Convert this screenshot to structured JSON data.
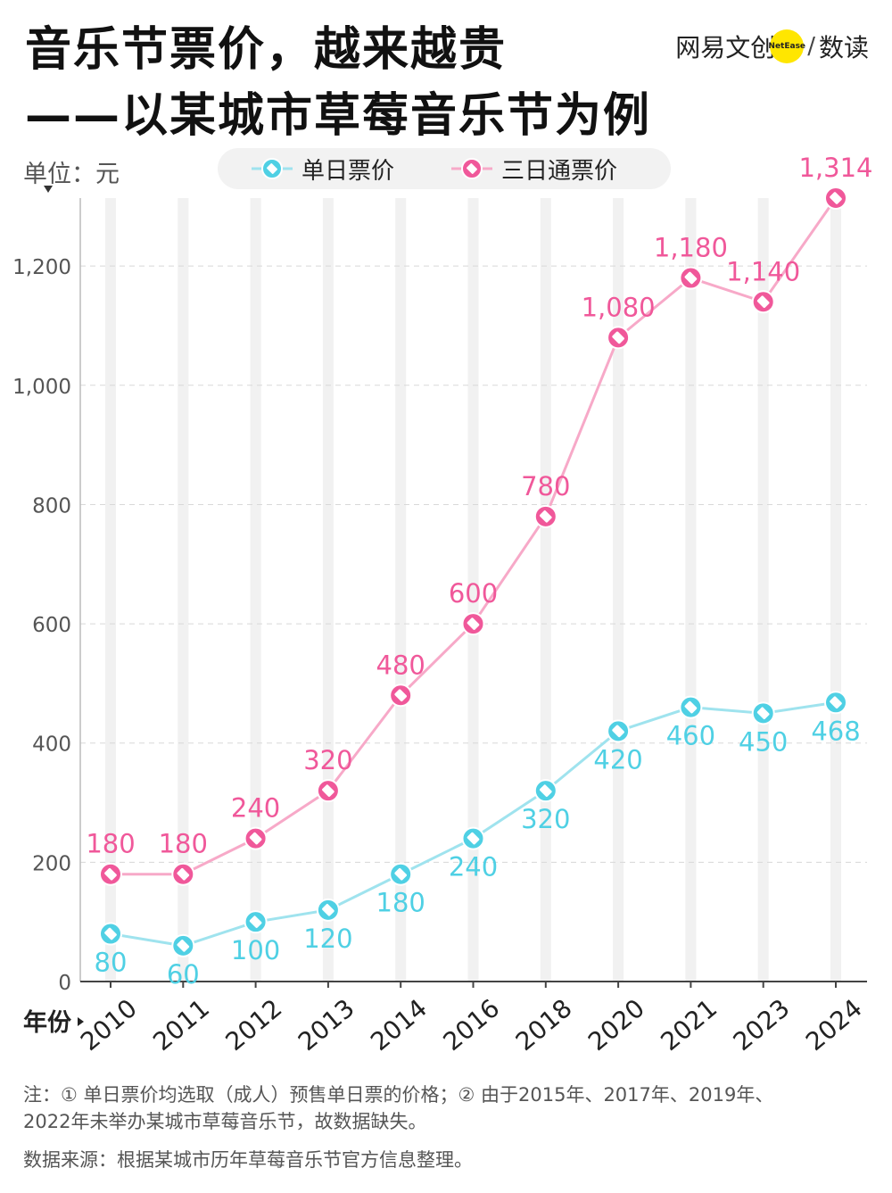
{
  "header": {
    "title_line1": "音乐节票价，越来越贵",
    "title_line2": "——以某城市草莓音乐节为例",
    "brand_left": "网易文创",
    "brand_badge": "NetEase",
    "brand_slash": "/",
    "brand_right": "数读"
  },
  "unit_label": "单位：元",
  "x_axis_label": "年份",
  "colors": {
    "single": "#4fd0e4",
    "three_day": "#f0589a",
    "three_day_line": "#f7a9c8",
    "single_line": "#9fe3ee"
  },
  "chart_data": {
    "type": "line",
    "categories": [
      "2010",
      "2011",
      "2012",
      "2013",
      "2014",
      "2016",
      "2018",
      "2020",
      "2021",
      "2023",
      "2024"
    ],
    "ylim": [
      0,
      1314
    ],
    "yticks": [
      0,
      200,
      400,
      600,
      800,
      1000,
      1200
    ],
    "ytick_labels": [
      "0",
      "200",
      "400",
      "600",
      "800",
      "1,000",
      "1,200"
    ],
    "grid": true,
    "legend_position": "top",
    "series": [
      {
        "name": "单日票价",
        "values": [
          80,
          60,
          100,
          120,
          180,
          240,
          320,
          420,
          460,
          450,
          468
        ],
        "labels": [
          "80",
          "60",
          "100",
          "120",
          "180",
          "240",
          "320",
          "420",
          "460",
          "450",
          "468"
        ]
      },
      {
        "name": "三日通票价",
        "values": [
          180,
          180,
          240,
          320,
          480,
          600,
          780,
          1080,
          1180,
          1140,
          1314
        ],
        "labels": [
          "180",
          "180",
          "240",
          "320",
          "480",
          "600",
          "780",
          "1,080",
          "1,180",
          "1,140",
          "1,314"
        ]
      }
    ]
  },
  "notes": {
    "note_line1": "注：① 单日票价均选取（成人）预售单日票的价格；② 由于2015年、2017年、2019年、",
    "note_line2": "2022年未举办某城市草莓音乐节，故数据缺失。",
    "source": "数据来源：根据某城市历年草莓音乐节官方信息整理。"
  }
}
